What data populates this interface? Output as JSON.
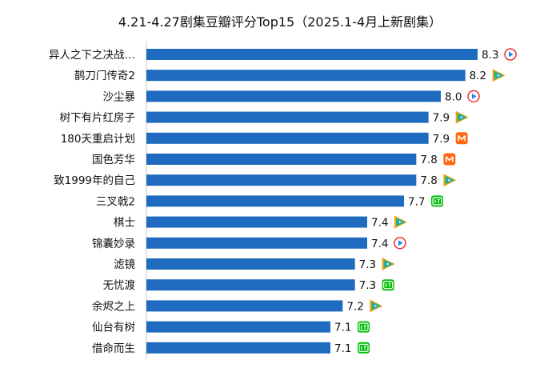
{
  "chart_data": {
    "type": "bar",
    "orientation": "horizontal",
    "title": "4.21-4.27剧集豆瓣评分Top15（2025.1-4月上新剧集）",
    "categories": [
      "异人之下之决战…",
      "鹊刀门传奇2",
      "沙尘暴",
      "树下有片红房子",
      "180天重启计划",
      "国色芳华",
      "致1999年的自己",
      "三叉戟2",
      "棋士",
      "锦囊妙录",
      "滤镜",
      "无忧渡",
      "余烬之上",
      "仙台有树",
      "借命而生"
    ],
    "values": [
      8.3,
      8.2,
      8.0,
      7.9,
      7.9,
      7.8,
      7.8,
      7.7,
      7.4,
      7.4,
      7.3,
      7.3,
      7.2,
      7.1,
      7.1
    ],
    "value_labels": [
      "8.3",
      "8.2",
      "8.0",
      "7.9",
      "7.9",
      "7.8",
      "7.8",
      "7.7",
      "7.4",
      "7.4",
      "7.3",
      "7.3",
      "7.2",
      "7.1",
      "7.1"
    ],
    "platforms": [
      "youku",
      "tencent",
      "youku",
      "tencent",
      "mango",
      "mango",
      "tencent",
      "iqiyi",
      "tencent",
      "youku",
      "tencent",
      "iqiyi",
      "tencent",
      "iqiyi",
      "iqiyi"
    ],
    "bar_color": "#1f6bbf",
    "xlim": [
      5.6,
      8.3
    ],
    "grid": false,
    "legend": "none"
  },
  "platform_colors": {
    "youku_red": "#e8303a",
    "youku_blue": "#1c8ae0",
    "tencent_orange": "#f7a21b",
    "tencent_green": "#2bb673",
    "tencent_blue": "#1a9de0",
    "mango": "#ff6a13",
    "iqiyi": "#00be06"
  }
}
